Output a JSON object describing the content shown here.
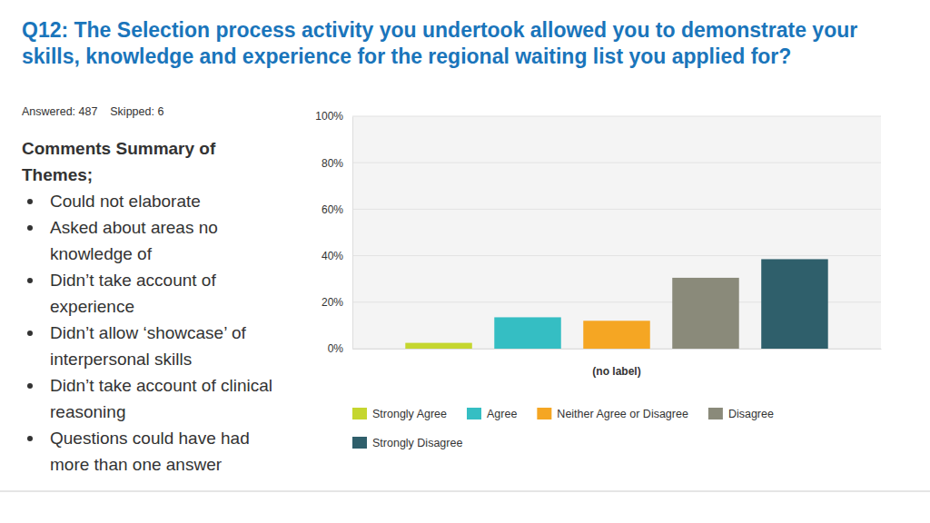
{
  "chart_data": {
    "type": "bar",
    "title": "Q12: The Selection process activity you undertook allowed you to demonstrate your skills, knowledge and experience for the regional waiting list you applied for?",
    "subtitle": "Answered: 487    Skipped: 6",
    "categories": [
      "(no label)"
    ],
    "series": [
      {
        "name": "Strongly Agree",
        "color": "#c5d62f",
        "values": [
          2.5
        ]
      },
      {
        "name": "Agree",
        "color": "#35bec3",
        "values": [
          13.5
        ]
      },
      {
        "name": "Neither Agree or Disagree",
        "color": "#f5a623",
        "values": [
          12
        ]
      },
      {
        "name": "Disagree",
        "color": "#8a8a7a",
        "values": [
          30.5
        ]
      },
      {
        "name": "Strongly Disagree",
        "color": "#2f5f6b",
        "values": [
          38.5
        ]
      }
    ],
    "ylim": [
      0,
      100
    ],
    "yticks": [
      {
        "value": 0,
        "label": "0%"
      },
      {
        "value": 20,
        "label": "20%"
      },
      {
        "value": 40,
        "label": "40%"
      },
      {
        "value": 60,
        "label": "60%"
      },
      {
        "value": 80,
        "label": "80%"
      },
      {
        "value": 100,
        "label": "100%"
      }
    ],
    "grid": true,
    "legend": "bottom"
  },
  "comments": {
    "heading": "Comments Summary of Themes;",
    "items": [
      "Could not elaborate",
      "Asked about areas no knowledge of",
      "Didn’t take account of experience",
      "Didn’t allow ‘showcase’ of interpersonal skills",
      "Didn’t take account of clinical reasoning",
      "Questions could have had more than one answer"
    ]
  }
}
